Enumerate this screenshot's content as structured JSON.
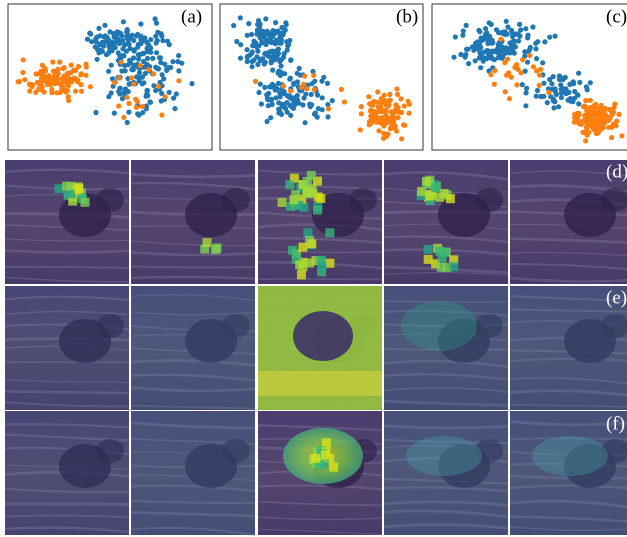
{
  "panels": {
    "labels": [
      "(a)",
      "(b)",
      "(c)",
      "(d)",
      "(e)",
      "(f)"
    ]
  }
}
